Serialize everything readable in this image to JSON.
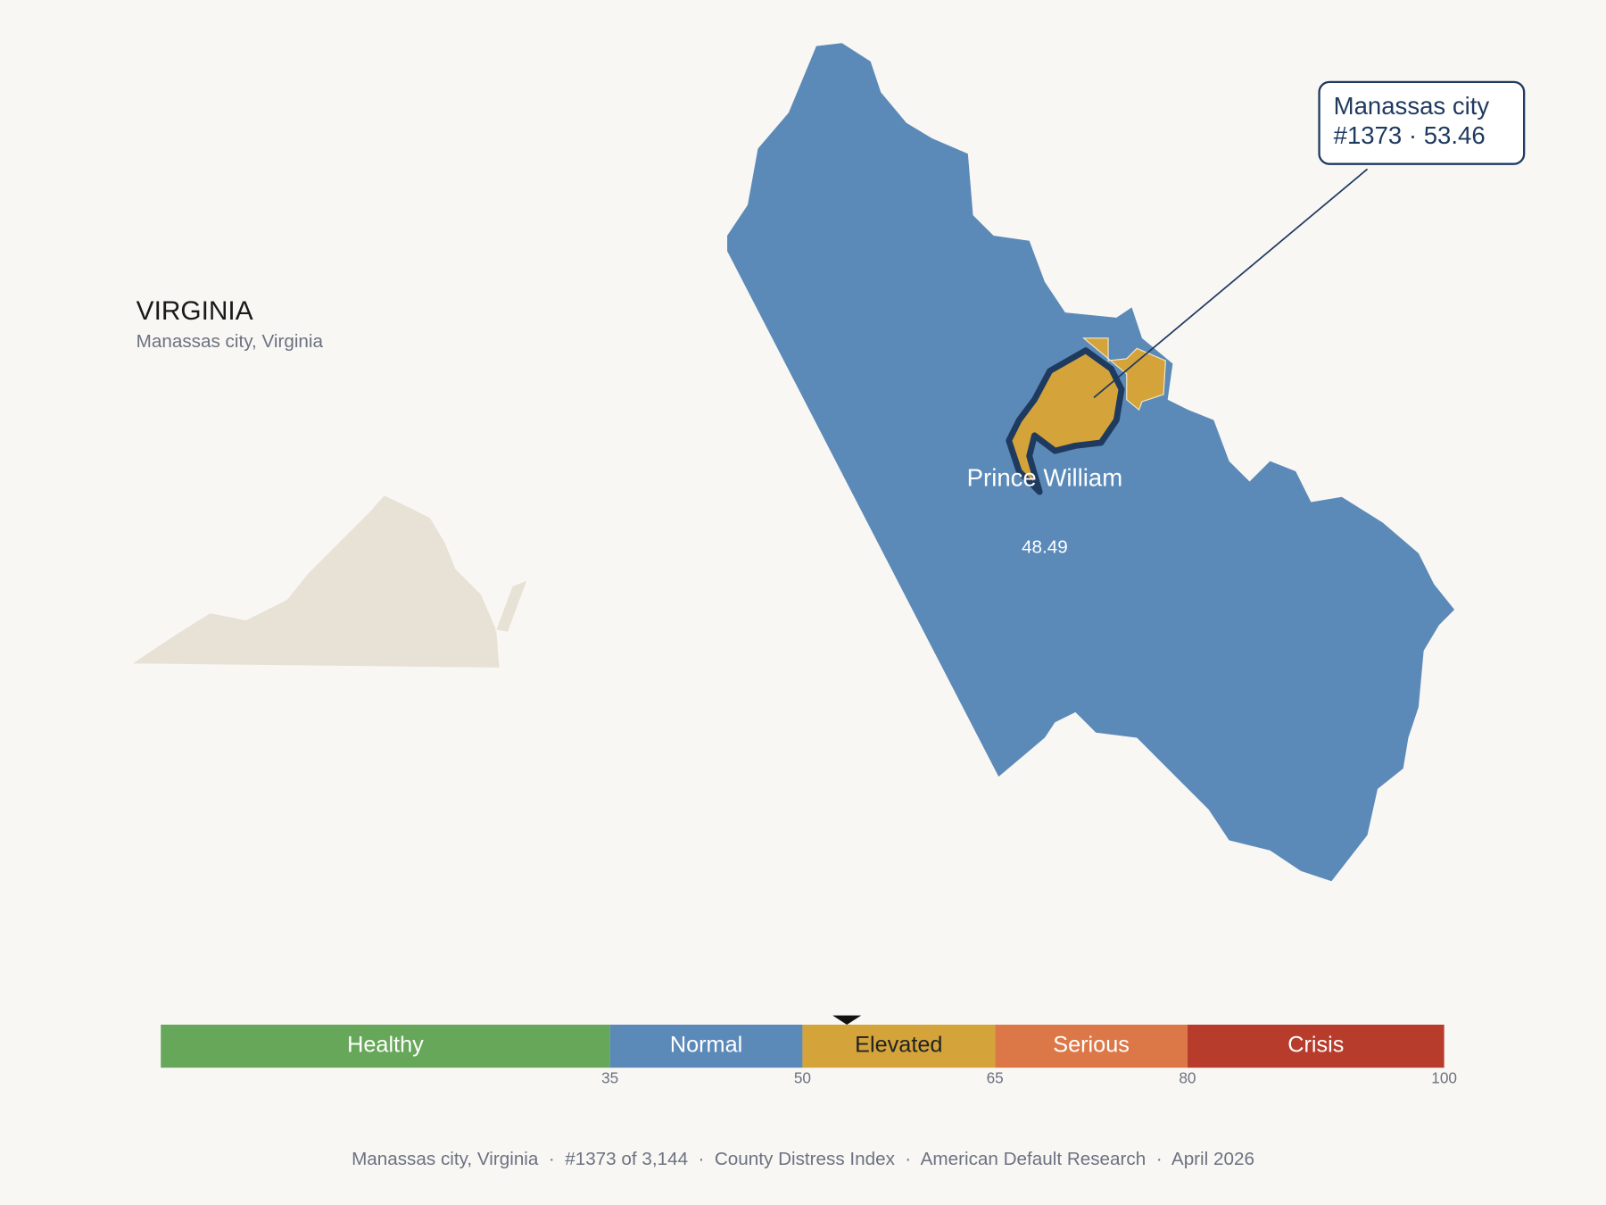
{
  "header": {
    "title": "VIRGINIA",
    "subtitle": "Manassas city, Virginia"
  },
  "map": {
    "county_name": "Prince William",
    "county_score": 48.49,
    "highlight": {
      "name": "Manassas city",
      "rank_label": "#1373 · 53.46",
      "score": 53.46
    }
  },
  "scale": {
    "range": [
      0,
      100
    ],
    "bands": [
      {
        "label": "Healthy",
        "to": 35,
        "color": "#67a75a",
        "text_color": "#ffffff"
      },
      {
        "label": "Normal",
        "to": 50,
        "color": "#5b8ab8",
        "text_color": "#ffffff"
      },
      {
        "label": "Elevated",
        "to": 65,
        "color": "#d4a43a",
        "text_color": "#222222"
      },
      {
        "label": "Serious",
        "to": 80,
        "color": "#dc7848",
        "text_color": "#ffffff"
      },
      {
        "label": "Crisis",
        "to": 100,
        "color": "#b83c2c",
        "text_color": "#ffffff"
      }
    ]
  },
  "footer": "Manassas city, Virginia  ·  #1373 of 3,144  ·  County Distress Index  ·  American Default Research  ·  April 2026"
}
